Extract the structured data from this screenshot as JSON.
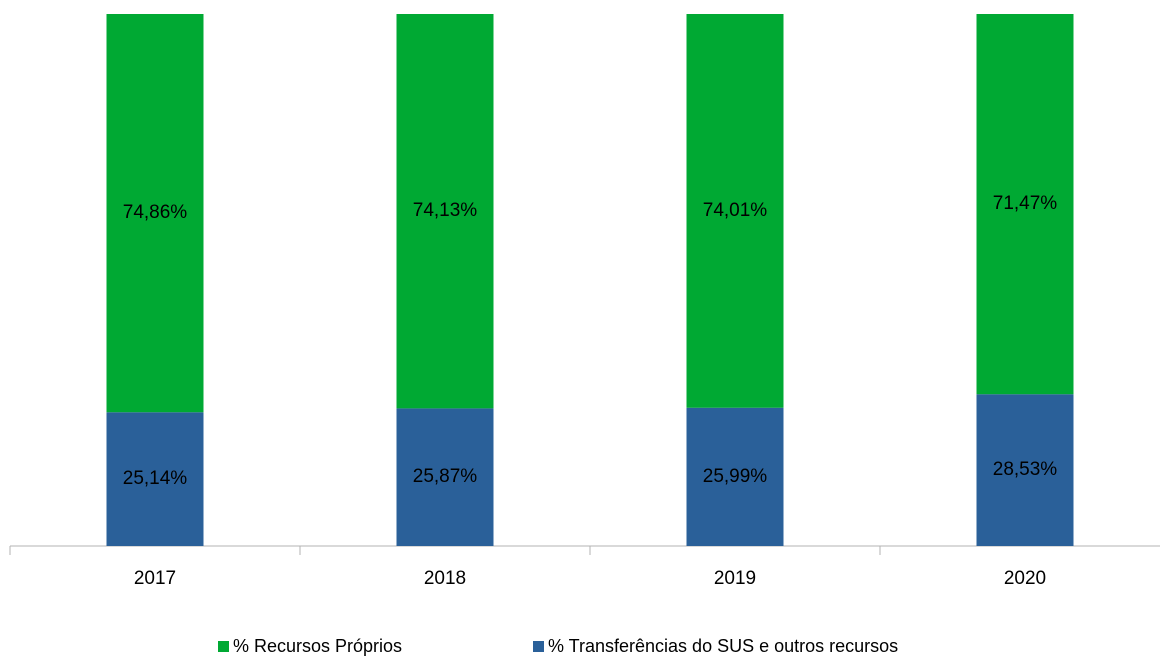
{
  "chart_data": {
    "type": "stacked_bar",
    "categories": [
      "2017",
      "2018",
      "2019",
      "2020"
    ],
    "series": [
      {
        "name": "% Transferências do SUS e outros recursos",
        "color": "#2a6099",
        "values": [
          25.14,
          25.87,
          25.99,
          28.53
        ],
        "value_labels": [
          "25,14%",
          "25,87%",
          "25,99%",
          "28,53%"
        ]
      },
      {
        "name": "% Recursos Próprios",
        "color": "#00a933",
        "values": [
          74.86,
          74.13,
          74.01,
          71.47
        ],
        "value_labels": [
          "74,86%",
          "74,13%",
          "74,01%",
          "71,47%"
        ]
      }
    ],
    "ylim": [
      0,
      100
    ],
    "legend": "bottom"
  }
}
